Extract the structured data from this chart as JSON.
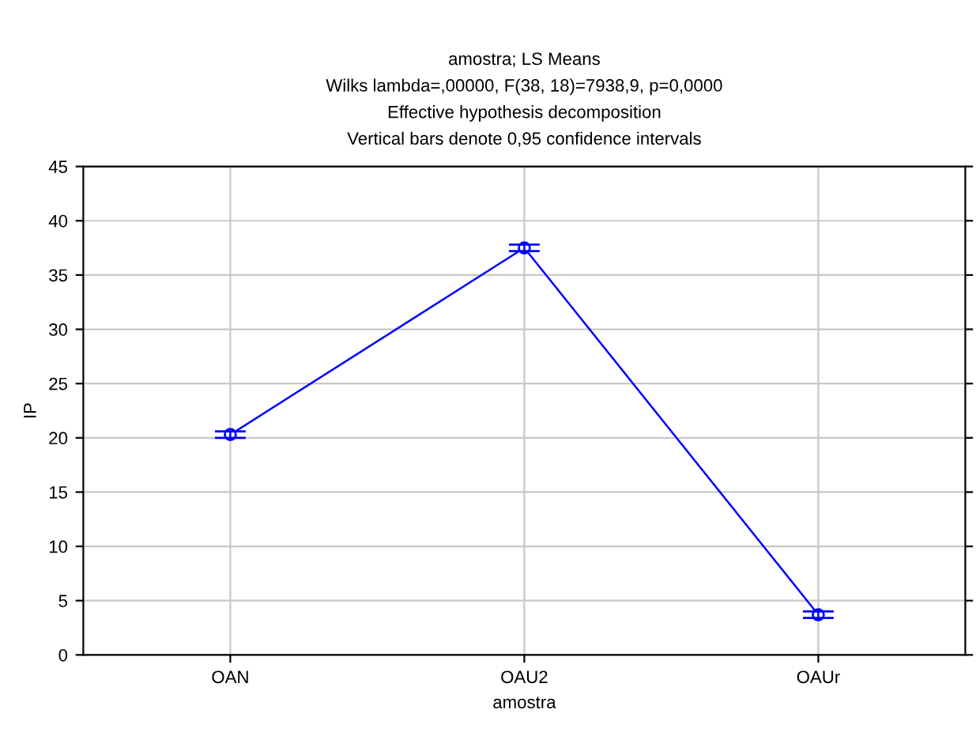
{
  "chart_data": {
    "type": "line",
    "title": "amostra; LS Means\nWilks lambda=,00000, F(38, 18)=7938,9, p=0,0000\nEffective hypothesis decomposition\nVertical bars denote 0,95 confidence intervals",
    "xlabel": "amostra",
    "ylabel": "IP",
    "categories": [
      "OAN",
      "OAU2",
      "OAUr"
    ],
    "series": [
      {
        "color": "#0000ff",
        "values": [
          20.3,
          37.5,
          3.7
        ],
        "errors": [
          0.3,
          0.3,
          0.3
        ]
      }
    ],
    "ylim": [
      0,
      45
    ],
    "yticks": [
      0,
      5,
      10,
      15,
      20,
      25,
      30,
      35,
      40,
      45
    ],
    "grid": true,
    "marker": "circle",
    "line_style": "solid"
  }
}
